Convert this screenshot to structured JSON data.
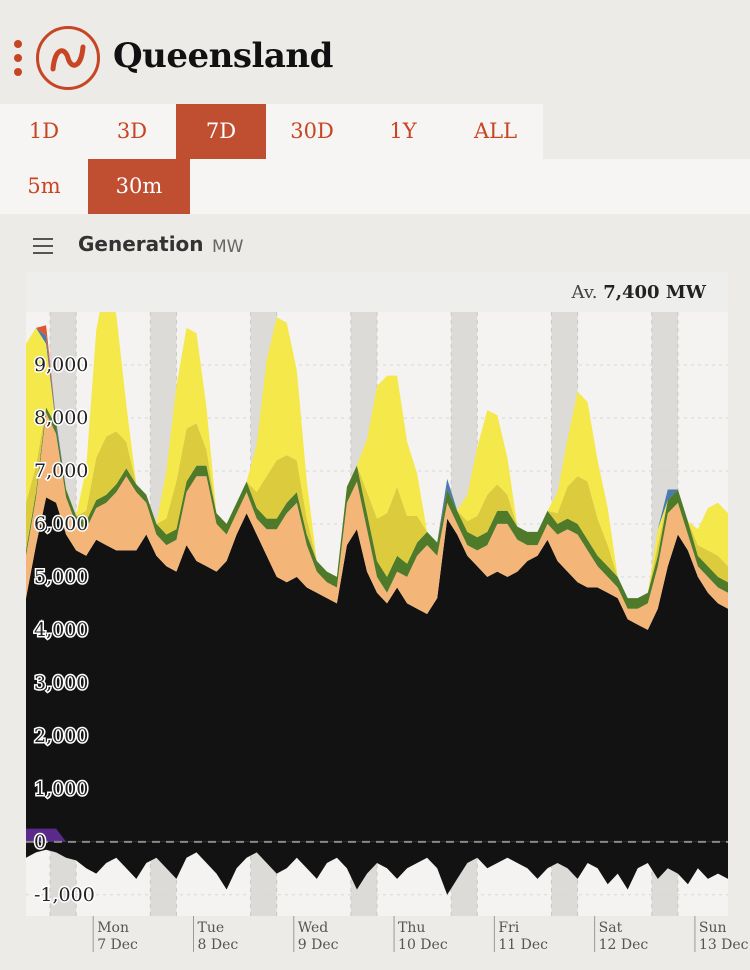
{
  "header": {
    "title": "Queensland",
    "menu_icon": "kebab-menu-icon",
    "logo_icon": "opennem-logo-icon"
  },
  "range_buttons": [
    {
      "label": "1D",
      "active": false
    },
    {
      "label": "3D",
      "active": false
    },
    {
      "label": "7D",
      "active": true
    },
    {
      "label": "30D",
      "active": false
    },
    {
      "label": "1Y",
      "active": false
    },
    {
      "label": "ALL",
      "active": false
    }
  ],
  "interval_buttons": [
    {
      "label": "5m",
      "active": false
    },
    {
      "label": "30m",
      "active": true
    }
  ],
  "panel": {
    "title": "Generation",
    "unit": "MW",
    "menu_icon": "hamburger-menu-icon"
  },
  "average": {
    "label": "Av.",
    "value": "7,400 MW"
  },
  "colors": {
    "accent": "#C74523",
    "active_button": "#C04F31",
    "coal": "#121212",
    "gas": "#F4B678",
    "wind": "#4E7A2A",
    "rooftop_solar": "#F4E84B",
    "utility_solar": "#DCCB3C",
    "hydro": "#4A7AAE",
    "distillate": "#E0572F",
    "pumps": "#5A2A8A"
  },
  "chart_data": {
    "type": "area",
    "title": "",
    "ylabel": "MW",
    "ylim": [
      -1400,
      10000
    ],
    "yticks": [
      -1000,
      0,
      1000,
      2000,
      3000,
      4000,
      5000,
      6000,
      7000,
      8000,
      9000
    ],
    "ytick_labels": [
      "-1,000",
      "0",
      "1,000",
      "2,000",
      "3,000",
      "4,000",
      "5,000",
      "6,000",
      "7,000",
      "8,000",
      "9,000"
    ],
    "xlim": [
      -0.7,
      6.3
    ],
    "x_ticks": [
      {
        "day": 0,
        "line1": "Mon",
        "line2": "7 Dec"
      },
      {
        "day": 1,
        "line1": "Tue",
        "line2": "8 Dec"
      },
      {
        "day": 2,
        "line1": "Wed",
        "line2": "9 Dec"
      },
      {
        "day": 3,
        "line1": "Thu",
        "line2": "10 Dec"
      },
      {
        "day": 4,
        "line1": "Fri",
        "line2": "11 Dec"
      },
      {
        "day": 5,
        "line1": "Sat",
        "line2": "12 Dec"
      },
      {
        "day": 6,
        "line1": "Sun",
        "line2": "13 Dec"
      }
    ],
    "night_bands": [
      [
        -0.46,
        -0.2
      ],
      [
        0.54,
        0.8
      ],
      [
        1.54,
        1.8
      ],
      [
        2.54,
        2.8
      ],
      [
        3.54,
        3.8
      ],
      [
        4.54,
        4.8
      ],
      [
        5.54,
        5.8
      ]
    ],
    "x": [
      -0.7,
      -0.6,
      -0.5,
      -0.4,
      -0.3,
      -0.2,
      -0.1,
      0.0,
      0.1,
      0.2,
      0.3,
      0.4,
      0.5,
      0.6,
      0.7,
      0.8,
      0.9,
      1.0,
      1.1,
      1.2,
      1.3,
      1.4,
      1.5,
      1.6,
      1.7,
      1.8,
      1.9,
      2.0,
      2.1,
      2.2,
      2.3,
      2.4,
      2.5,
      2.6,
      2.7,
      2.8,
      2.9,
      3.0,
      3.1,
      3.2,
      3.3,
      3.4,
      3.5,
      3.6,
      3.7,
      3.8,
      3.9,
      4.0,
      4.1,
      4.2,
      4.3,
      4.4,
      4.5,
      4.6,
      4.7,
      4.8,
      4.9,
      5.0,
      5.1,
      5.2,
      5.3,
      5.4,
      5.5,
      5.6,
      5.7,
      5.8,
      5.9,
      6.0,
      6.1,
      6.2,
      6.3
    ],
    "series": [
      {
        "key": "coal",
        "values": [
          4600,
          5600,
          6500,
          6400,
          5800,
          5500,
          5400,
          5700,
          5600,
          5500,
          5500,
          5500,
          5800,
          5400,
          5200,
          5100,
          5600,
          5300,
          5200,
          5100,
          5300,
          5800,
          6200,
          5800,
          5400,
          5000,
          4900,
          5000,
          4800,
          4700,
          4600,
          4500,
          5600,
          5900,
          5100,
          4700,
          4500,
          4800,
          4500,
          4400,
          4300,
          4600,
          6100,
          5800,
          5400,
          5200,
          5000,
          5100,
          5000,
          5100,
          5300,
          5400,
          5700,
          5300,
          5100,
          4900,
          4800,
          4800,
          4700,
          4600,
          4200,
          4100,
          4000,
          4400,
          5200,
          5800,
          5500,
          5000,
          4700,
          4500,
          4400
        ]
      },
      {
        "key": "gas",
        "values": [
          800,
          900,
          1600,
          1300,
          700,
          500,
          500,
          600,
          800,
          1100,
          1400,
          1100,
          600,
          400,
          400,
          600,
          1000,
          1600,
          1700,
          900,
          500,
          400,
          400,
          300,
          500,
          900,
          1300,
          1400,
          800,
          400,
          300,
          300,
          800,
          900,
          800,
          300,
          200,
          300,
          500,
          1000,
          1300,
          800,
          300,
          200,
          200,
          300,
          600,
          900,
          1000,
          600,
          300,
          200,
          300,
          500,
          800,
          900,
          700,
          400,
          300,
          200,
          200,
          300,
          500,
          800,
          1000,
          600,
          300,
          200,
          300,
          300,
          300
        ]
      },
      {
        "key": "wind",
        "values": [
          100,
          100,
          100,
          150,
          150,
          150,
          150,
          150,
          150,
          150,
          150,
          150,
          150,
          200,
          200,
          200,
          200,
          200,
          200,
          200,
          200,
          200,
          200,
          200,
          200,
          200,
          200,
          200,
          200,
          200,
          200,
          200,
          300,
          300,
          300,
          300,
          300,
          300,
          250,
          250,
          250,
          250,
          250,
          250,
          250,
          250,
          250,
          250,
          250,
          250,
          250,
          250,
          250,
          200,
          200,
          200,
          200,
          200,
          200,
          200,
          200,
          200,
          200,
          200,
          250,
          250,
          250,
          200,
          200,
          200,
          200
        ]
      },
      {
        "key": "utility_solar",
        "values": [
          900,
          500,
          0,
          0,
          0,
          0,
          200,
          800,
          1100,
          1000,
          500,
          0,
          0,
          0,
          300,
          900,
          1000,
          800,
          300,
          0,
          0,
          0,
          0,
          300,
          800,
          1100,
          900,
          600,
          300,
          0,
          0,
          0,
          0,
          0,
          400,
          800,
          1200,
          1300,
          900,
          500,
          0,
          0,
          0,
          0,
          200,
          400,
          700,
          500,
          300,
          0,
          0,
          0,
          0,
          200,
          600,
          900,
          1100,
          700,
          400,
          0,
          0,
          0,
          0,
          200,
          0,
          0,
          0,
          200,
          300,
          400,
          300
        ]
      },
      {
        "key": "rooftop_solar",
        "values": [
          3000,
          2600,
          1200,
          0,
          0,
          0,
          800,
          2400,
          3000,
          2200,
          700,
          0,
          0,
          0,
          900,
          1800,
          1900,
          1700,
          800,
          0,
          0,
          0,
          0,
          900,
          2200,
          2700,
          2500,
          1700,
          700,
          0,
          0,
          0,
          0,
          0,
          1000,
          2500,
          2600,
          2100,
          1400,
          800,
          0,
          0,
          0,
          0,
          500,
          1300,
          1600,
          1300,
          700,
          0,
          0,
          0,
          0,
          400,
          900,
          1600,
          1500,
          1100,
          700,
          0,
          0,
          0,
          0,
          300,
          0,
          0,
          0,
          300,
          800,
          1000,
          1000
        ]
      },
      {
        "key": "hydro",
        "values": [
          0,
          0,
          150,
          100,
          0,
          0,
          0,
          0,
          0,
          0,
          0,
          0,
          0,
          0,
          0,
          0,
          0,
          0,
          0,
          0,
          0,
          0,
          0,
          0,
          0,
          0,
          0,
          0,
          0,
          0,
          0,
          0,
          0,
          0,
          0,
          0,
          0,
          0,
          0,
          0,
          0,
          0,
          200,
          0,
          0,
          0,
          0,
          0,
          0,
          0,
          0,
          0,
          0,
          0,
          0,
          0,
          0,
          0,
          0,
          0,
          0,
          0,
          0,
          0,
          200,
          0,
          0,
          0,
          0,
          0,
          0
        ]
      },
      {
        "key": "distillate",
        "values": [
          0,
          0,
          200,
          0,
          0,
          0,
          0,
          0,
          0,
          0,
          0,
          0,
          0,
          0,
          0,
          0,
          0,
          0,
          0,
          0,
          0,
          0,
          0,
          0,
          0,
          0,
          0,
          0,
          0,
          0,
          0,
          0,
          0,
          0,
          0,
          0,
          0,
          0,
          0,
          0,
          0,
          0,
          0,
          0,
          0,
          0,
          0,
          0,
          0,
          0,
          0,
          0,
          0,
          0,
          0,
          0,
          0,
          0,
          0,
          0,
          0,
          0,
          0,
          0,
          0,
          0,
          0,
          0,
          0,
          0,
          0
        ]
      }
    ],
    "negative_series": [
      {
        "key": "coal",
        "values": [
          -300,
          -200,
          -150,
          -200,
          -300,
          -350,
          -500,
          -600,
          -400,
          -300,
          -500,
          -700,
          -400,
          -300,
          -500,
          -700,
          -300,
          -200,
          -400,
          -600,
          -900,
          -500,
          -300,
          -200,
          -400,
          -600,
          -500,
          -300,
          -500,
          -700,
          -400,
          -300,
          -500,
          -900,
          -600,
          -400,
          -500,
          -700,
          -500,
          -400,
          -300,
          -500,
          -1000,
          -700,
          -400,
          -300,
          -500,
          -400,
          -300,
          -400,
          -500,
          -700,
          -500,
          -400,
          -500,
          -700,
          -400,
          -500,
          -800,
          -600,
          -900,
          -500,
          -400,
          -700,
          -500,
          -600,
          -800,
          -500,
          -700,
          -600,
          -700
        ]
      },
      {
        "key": "pumps",
        "values": [
          250,
          250,
          250,
          250,
          0,
          0,
          0,
          0,
          0,
          0,
          0,
          0,
          0,
          0,
          0,
          0,
          0,
          0,
          0,
          0,
          0,
          0,
          0,
          0,
          0,
          0,
          0,
          0,
          0,
          0,
          0,
          0,
          0,
          0,
          0,
          0,
          0,
          0,
          0,
          0,
          0,
          0,
          0,
          0,
          0,
          0,
          0,
          0,
          0,
          0,
          0,
          0,
          0,
          0,
          0,
          0,
          0,
          0,
          0,
          0,
          0,
          0,
          0,
          0,
          0,
          0,
          0,
          0,
          0,
          0,
          0
        ]
      }
    ],
    "grid": true,
    "legend": "none"
  }
}
